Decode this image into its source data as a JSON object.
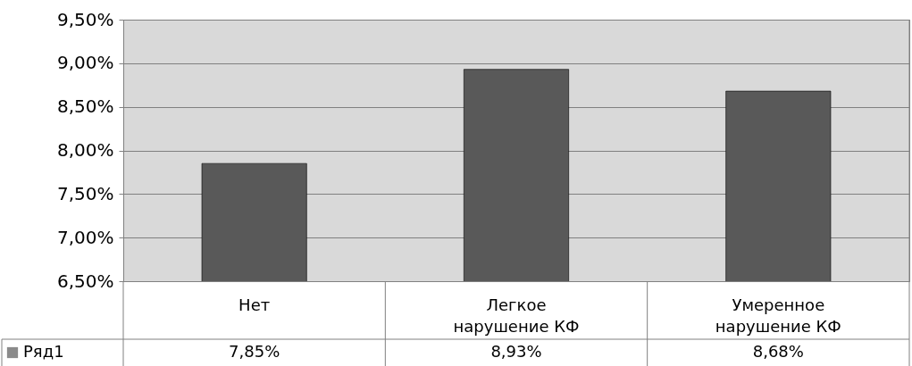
{
  "chart_data": {
    "type": "bar",
    "categories": [
      "Нет",
      "Легкое нарушение КФ",
      "Умеренное нарушение КФ"
    ],
    "series": [
      {
        "name": "Ряд1",
        "color": "#595959",
        "values": [
          7.85,
          8.93,
          8.68
        ],
        "value_labels": [
          "7,85%",
          "8,93%",
          "8,68%"
        ]
      }
    ],
    "ylim": [
      6.5,
      9.5
    ],
    "yticks": [
      {
        "value": 6.5,
        "label": "6,50%"
      },
      {
        "value": 7.0,
        "label": "7,00%"
      },
      {
        "value": 7.5,
        "label": "7,50%"
      },
      {
        "value": 8.0,
        "label": "8,00%"
      },
      {
        "value": 8.5,
        "label": "8,50%"
      },
      {
        "value": 9.0,
        "label": "9,00%"
      },
      {
        "value": 9.5,
        "label": "9,50%"
      }
    ],
    "grid": "y",
    "legend": "bottom left"
  }
}
